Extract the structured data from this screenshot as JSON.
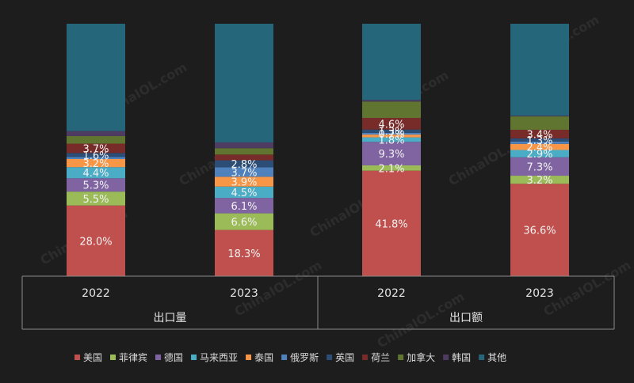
{
  "chart_data": {
    "type": "bar",
    "stacked": true,
    "percent_stacked": true,
    "groups": [
      {
        "label": "出口量",
        "categories": [
          "2022",
          "2023"
        ]
      },
      {
        "label": "出口额",
        "categories": [
          "2022",
          "2023"
        ]
      }
    ],
    "categories": [
      "2022",
      "2023",
      "2022",
      "2023"
    ],
    "series": [
      {
        "name": "美国",
        "color": "#c0504d",
        "values": [
          28.0,
          18.3,
          41.8,
          36.6
        ],
        "labels": [
          "28.0%",
          "18.3%",
          "41.8%",
          "36.6%"
        ]
      },
      {
        "name": "菲律宾",
        "color": "#9bbb59",
        "values": [
          5.5,
          6.6,
          2.1,
          3.2
        ],
        "labels": [
          "5.5%",
          "6.6%",
          "2.1%",
          "3.2%"
        ]
      },
      {
        "name": "德国",
        "color": "#8064a2",
        "values": [
          5.3,
          6.1,
          9.3,
          7.3
        ],
        "labels": [
          "5.3%",
          "6.1%",
          "9.3%",
          "7.3%"
        ]
      },
      {
        "name": "马来西亚",
        "color": "#4bacc6",
        "values": [
          4.4,
          4.5,
          1.8,
          2.9
        ],
        "labels": [
          "4.4%",
          "4.5%",
          "1.8%",
          "2.9%"
        ]
      },
      {
        "name": "泰国",
        "color": "#f79646",
        "values": [
          3.2,
          3.9,
          1.1,
          2.4
        ],
        "labels": [
          "3.2%",
          "3.9%",
          "",
          "2.4%"
        ]
      },
      {
        "name": "俄罗斯",
        "color": "#4f81bd",
        "values": [
          0.8,
          3.7,
          0.7,
          0.9
        ],
        "labels": [
          "",
          "3.7%",
          "0.7%",
          ""
        ]
      },
      {
        "name": "英国",
        "color": "#2c4d75",
        "values": [
          1.6,
          2.8,
          1.3,
          1.3
        ],
        "labels": [
          "1.6%",
          "2.8%",
          "1.3%",
          "1.3%"
        ]
      },
      {
        "name": "荷兰",
        "color": "#772c2a",
        "values": [
          3.7,
          2.3,
          4.6,
          3.4
        ],
        "labels": [
          "3.7%",
          "",
          "4.6%",
          "3.4%"
        ]
      },
      {
        "name": "加拿大",
        "color": "#5f7530",
        "values": [
          3.0,
          2.5,
          6.5,
          5.3
        ],
        "labels": [
          "",
          "",
          "",
          ""
        ]
      },
      {
        "name": "韩国",
        "color": "#4d3b62",
        "values": [
          2.0,
          2.3,
          0.6,
          0.3
        ],
        "labels": [
          "",
          "",
          "",
          ""
        ]
      },
      {
        "name": "其他",
        "color": "#25667a",
        "values": [
          42.5,
          47.0,
          30.2,
          36.4
        ],
        "labels": [
          "",
          "",
          "",
          ""
        ]
      }
    ],
    "ylim": [
      0,
      100
    ],
    "legend_position": "bottom"
  },
  "watermark": "ChinaIOL.com"
}
